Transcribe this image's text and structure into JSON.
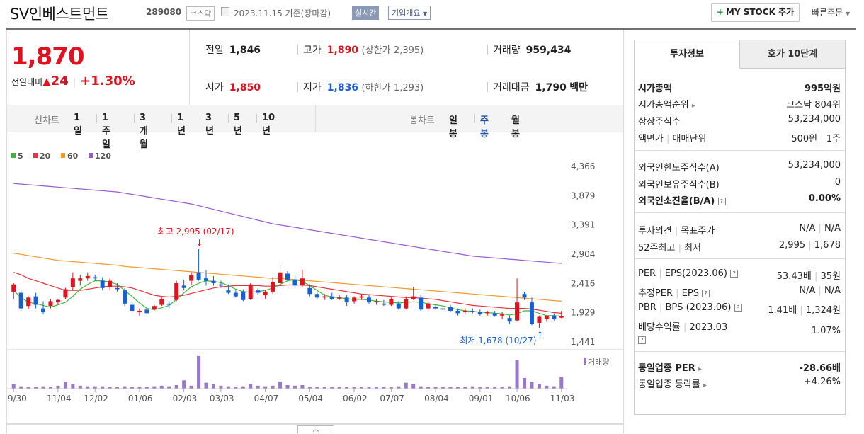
{
  "header": {
    "title": "SV인베스트먼트",
    "code": "289080",
    "market": "코스닥",
    "date": "2023.11.15",
    "date_note": "기준(장마감)",
    "live": "실시간",
    "corp": "기업개요",
    "mystock": "MY STOCK 추가",
    "quick": "빠른주문"
  },
  "price": {
    "current": "1,870",
    "change_label": "전일대비",
    "change_arrow": "▲",
    "change": "24",
    "rate": "+1.30%"
  },
  "quote": {
    "prev_label": "전일",
    "prev": "1,846",
    "high_label": "고가",
    "high": "1,890",
    "upper_label": "(상한가",
    "upper": "2,395)",
    "volume_label": "거래량",
    "volume": "959,434",
    "open_label": "시가",
    "open": "1,850",
    "low_label": "저가",
    "low": "1,836",
    "lower_label": "(하한가",
    "lower": "1,293)",
    "amount_label": "거래대금",
    "amount": "1,790",
    "amount_unit": "백만"
  },
  "toolbar": {
    "line_label": "선차트",
    "periods": [
      "1일",
      "1주일",
      "3개월",
      "1년",
      "3년",
      "5년",
      "10년"
    ],
    "candle_label": "봉차트",
    "candles": [
      "일봉",
      "주봉",
      "월봉"
    ],
    "candle_selected": 1
  },
  "chart_data": {
    "type": "candlestick",
    "legend": [
      {
        "name": "5",
        "color": "#3cb83c"
      },
      {
        "name": "20",
        "color": "#e8333c"
      },
      {
        "name": "60",
        "color": "#f39a2b"
      },
      {
        "name": "120",
        "color": "#9b59d0"
      }
    ],
    "y_ticks": [
      "4,366",
      "3,879",
      "3,391",
      "2,904",
      "2,416",
      "1,929",
      "1,441"
    ],
    "ylim": [
      1441,
      4366
    ],
    "x_ticks": [
      "09/30",
      "11/04",
      "12/02",
      "01/06",
      "02/03",
      "03/03",
      "04/07",
      "05/04",
      "06/02",
      "07/07",
      "08/04",
      "09/01",
      "10/06",
      "11/03"
    ],
    "annotation_high": "최고 2,995 (02/17)",
    "annotation_low": "최저 1,678 (10/27)",
    "volume_label": "거래량",
    "candles": [
      [
        2280,
        2420,
        2160,
        2400
      ],
      [
        2260,
        2300,
        1960,
        2000
      ],
      [
        2040,
        2200,
        1990,
        2180
      ],
      [
        2200,
        2260,
        2000,
        2060
      ],
      [
        2000,
        2120,
        1900,
        1940
      ],
      [
        2040,
        2150,
        2000,
        2120
      ],
      [
        2100,
        2160,
        2060,
        2140
      ],
      [
        2180,
        2340,
        2160,
        2320
      ],
      [
        2360,
        2600,
        2300,
        2500
      ],
      [
        2460,
        2560,
        2380,
        2500
      ],
      [
        2500,
        2600,
        2460,
        2540
      ],
      [
        2520,
        2560,
        2460,
        2500
      ],
      [
        2460,
        2520,
        2300,
        2340
      ],
      [
        2360,
        2500,
        2300,
        2460
      ],
      [
        2340,
        2420,
        2280,
        2320
      ],
      [
        2300,
        2340,
        2040,
        2080
      ],
      [
        2060,
        2100,
        1940,
        1960
      ],
      [
        1940,
        2000,
        1880,
        1960
      ],
      [
        1980,
        2020,
        1900,
        1920
      ],
      [
        1980,
        2060,
        1960,
        2040
      ],
      [
        2060,
        2180,
        2040,
        2160
      ],
      [
        2080,
        2120,
        2000,
        2060
      ],
      [
        2140,
        2460,
        2120,
        2420
      ],
      [
        2380,
        2480,
        2300,
        2340
      ],
      [
        2460,
        2600,
        2380,
        2560
      ],
      [
        2600,
        2995,
        2460,
        2480
      ],
      [
        2500,
        2640,
        2380,
        2460
      ],
      [
        2460,
        2540,
        2380,
        2420
      ],
      [
        2400,
        2460,
        2340,
        2380
      ],
      [
        2300,
        2400,
        2240,
        2260
      ],
      [
        2260,
        2300,
        2180,
        2200
      ],
      [
        2280,
        2320,
        2120,
        2140
      ],
      [
        2160,
        2420,
        2140,
        2400
      ],
      [
        2300,
        2340,
        2220,
        2260
      ],
      [
        2220,
        2300,
        2160,
        2280
      ],
      [
        2280,
        2520,
        2240,
        2440
      ],
      [
        2420,
        2720,
        2400,
        2600
      ],
      [
        2580,
        2620,
        2460,
        2480
      ],
      [
        2480,
        2560,
        2360,
        2380
      ],
      [
        2380,
        2640,
        2360,
        2500
      ],
      [
        2340,
        2400,
        2200,
        2240
      ],
      [
        2240,
        2280,
        2160,
        2180
      ],
      [
        2180,
        2240,
        2140,
        2200
      ],
      [
        2200,
        2260,
        2140,
        2160
      ],
      [
        2180,
        2220,
        2140,
        2180
      ],
      [
        2180,
        2220,
        2040,
        2100
      ],
      [
        2120,
        2200,
        2080,
        2180
      ],
      [
        2180,
        2240,
        2140,
        2200
      ],
      [
        2180,
        2220,
        2080,
        2100
      ],
      [
        2100,
        2160,
        2060,
        2120
      ],
      [
        2080,
        2140,
        2040,
        2060
      ],
      [
        2060,
        2180,
        2040,
        2160
      ],
      [
        2080,
        2120,
        1980,
        2000
      ],
      [
        2000,
        2200,
        1980,
        2160
      ],
      [
        2160,
        2360,
        2140,
        2200
      ],
      [
        2180,
        2220,
        1960,
        1980
      ],
      [
        2000,
        2120,
        1980,
        2080
      ],
      [
        2020,
        2060,
        1980,
        2000
      ],
      [
        2000,
        2040,
        1960,
        1980
      ],
      [
        2020,
        2060,
        1940,
        1960
      ],
      [
        1960,
        2000,
        1880,
        1920
      ],
      [
        1940,
        2000,
        1900,
        1960
      ],
      [
        1960,
        2000,
        1920,
        1940
      ],
      [
        1940,
        1980,
        1880,
        1900
      ],
      [
        1920,
        1960,
        1880,
        1940
      ],
      [
        1920,
        1960,
        1860,
        1880
      ],
      [
        1880,
        1940,
        1820,
        1900
      ],
      [
        1840,
        1880,
        1740,
        1780
      ],
      [
        1800,
        2500,
        1780,
        2100
      ],
      [
        2240,
        2280,
        2140,
        2180
      ],
      [
        2100,
        2180,
        1720,
        1740
      ],
      [
        1760,
        1880,
        1678,
        1860
      ],
      [
        1820,
        1880,
        1780,
        1880
      ],
      [
        1880,
        1920,
        1800,
        1820
      ],
      [
        1846,
        1960,
        1836,
        1870
      ]
    ],
    "ma5": [
      2300,
      2180,
      2100,
      2080,
      2050,
      2020,
      2060,
      2100,
      2200,
      2320,
      2400,
      2460,
      2460,
      2440,
      2400,
      2300,
      2200,
      2090,
      2000,
      1980,
      2010,
      2050,
      2150,
      2260,
      2360,
      2420,
      2460,
      2450,
      2430,
      2380,
      2320,
      2280,
      2270,
      2280,
      2300,
      2340,
      2400,
      2460,
      2480,
      2450,
      2380,
      2300,
      2220,
      2190,
      2180,
      2160,
      2150,
      2150,
      2140,
      2120,
      2110,
      2100,
      2090,
      2100,
      2110,
      2100,
      2080,
      2060,
      2040,
      2010,
      1980,
      1960,
      1950,
      1940,
      1930,
      1920,
      1910,
      1890,
      1910,
      1960,
      1960,
      1920,
      1880,
      1880,
      1870
    ],
    "ma20": [
      2600,
      2560,
      2500,
      2460,
      2420,
      2380,
      2340,
      2300,
      2300,
      2300,
      2320,
      2340,
      2360,
      2370,
      2370,
      2360,
      2340,
      2300,
      2260,
      2220,
      2200,
      2190,
      2200,
      2220,
      2250,
      2280,
      2310,
      2340,
      2360,
      2370,
      2380,
      2380,
      2380,
      2380,
      2370,
      2370,
      2380,
      2390,
      2390,
      2390,
      2380,
      2360,
      2340,
      2320,
      2300,
      2280,
      2260,
      2240,
      2230,
      2220,
      2210,
      2200,
      2190,
      2180,
      2180,
      2170,
      2160,
      2150,
      2130,
      2110,
      2090,
      2070,
      2050,
      2040,
      2030,
      2020,
      2010,
      2000,
      2000,
      2000,
      1990,
      1970,
      1950,
      1930,
      1920
    ],
    "ma60": [
      2920,
      2900,
      2880,
      2860,
      2840,
      2820,
      2800,
      2790,
      2780,
      2770,
      2760,
      2750,
      2740,
      2730,
      2720,
      2700,
      2690,
      2680,
      2670,
      2660,
      2650,
      2640,
      2630,
      2620,
      2610,
      2600,
      2590,
      2580,
      2570,
      2560,
      2550,
      2540,
      2530,
      2520,
      2510,
      2500,
      2500,
      2490,
      2480,
      2470,
      2460,
      2450,
      2440,
      2430,
      2420,
      2410,
      2400,
      2390,
      2380,
      2370,
      2360,
      2350,
      2340,
      2330,
      2320,
      2310,
      2300,
      2290,
      2280,
      2270,
      2260,
      2250,
      2240,
      2230,
      2220,
      2210,
      2200,
      2190,
      2180,
      2170,
      2160,
      2150,
      2140,
      2130,
      2120
    ],
    "ma120": [
      4080,
      4070,
      4060,
      4050,
      4040,
      4030,
      4020,
      4010,
      4000,
      3990,
      3980,
      3970,
      3960,
      3950,
      3940,
      3920,
      3900,
      3880,
      3860,
      3840,
      3820,
      3800,
      3780,
      3760,
      3740,
      3710,
      3680,
      3650,
      3620,
      3590,
      3560,
      3530,
      3500,
      3470,
      3440,
      3410,
      3390,
      3370,
      3350,
      3330,
      3310,
      3290,
      3270,
      3250,
      3230,
      3210,
      3190,
      3170,
      3150,
      3130,
      3110,
      3090,
      3070,
      3050,
      3030,
      3010,
      2990,
      2970,
      2950,
      2930,
      2910,
      2890,
      2870,
      2860,
      2850,
      2840,
      2830,
      2820,
      2810,
      2800,
      2790,
      2780,
      2770,
      2760,
      2750
    ],
    "volume": [
      8,
      4,
      3,
      3,
      4,
      3,
      5,
      12,
      8,
      5,
      4,
      4,
      4,
      3,
      3,
      4,
      3,
      3,
      3,
      4,
      5,
      4,
      6,
      14,
      5,
      55,
      10,
      8,
      5,
      4,
      3,
      4,
      8,
      5,
      4,
      5,
      12,
      6,
      5,
      6,
      3,
      3,
      3,
      3,
      3,
      3,
      3,
      3,
      3,
      3,
      3,
      3,
      4,
      10,
      8,
      4,
      3,
      3,
      3,
      3,
      3,
      3,
      4,
      3,
      3,
      3,
      3,
      4,
      48,
      18,
      12,
      8,
      5,
      4,
      20
    ]
  },
  "tabs": {
    "invest": "투자정보",
    "hoga": "호가 10단계"
  },
  "info": {
    "mcap_label": "시가총액",
    "mcap": "995억원",
    "rank_label": "시가총액순위",
    "rank": "코스닥 804위",
    "shares_label": "상장주식수",
    "shares": "53,234,000",
    "face_label": "액면가",
    "unit_label": "매매단위",
    "face": "500원",
    "unit": "1주",
    "foreign_limit_label": "외국인한도주식수(A)",
    "foreign_limit": "53,234,000",
    "foreign_hold_label": "외국인보유주식수(B)",
    "foreign_hold": "0",
    "foreign_rate_label": "외국인소진율(B/A)",
    "foreign_rate": "0.00%",
    "opinion_label": "투자의견",
    "target_label": "목표주가",
    "opinion": "N/A",
    "target": "N/A",
    "w52_label": "52주최고",
    "w52low_label": "최저",
    "w52_high": "2,995",
    "w52_low": "1,678",
    "per_label": "PER",
    "eps_label": "EPS(2023.06)",
    "per": "53.43배",
    "eps": "35원",
    "eper_label": "추정PER",
    "eeps_label": "EPS",
    "eper": "N/A",
    "eeps": "N/A",
    "pbr_label": "PBR",
    "bps_label": "BPS (2023.06)",
    "pbr": "1.41배",
    "bps": "1,324원",
    "div_label": "배당수익률",
    "div_date": "2023.03",
    "div": "1.07%",
    "ind_per_label": "동일업종 PER",
    "ind_per": "-28.66배",
    "ind_rate_label": "동일업종 등락률",
    "ind_rate": "+4.26%"
  }
}
